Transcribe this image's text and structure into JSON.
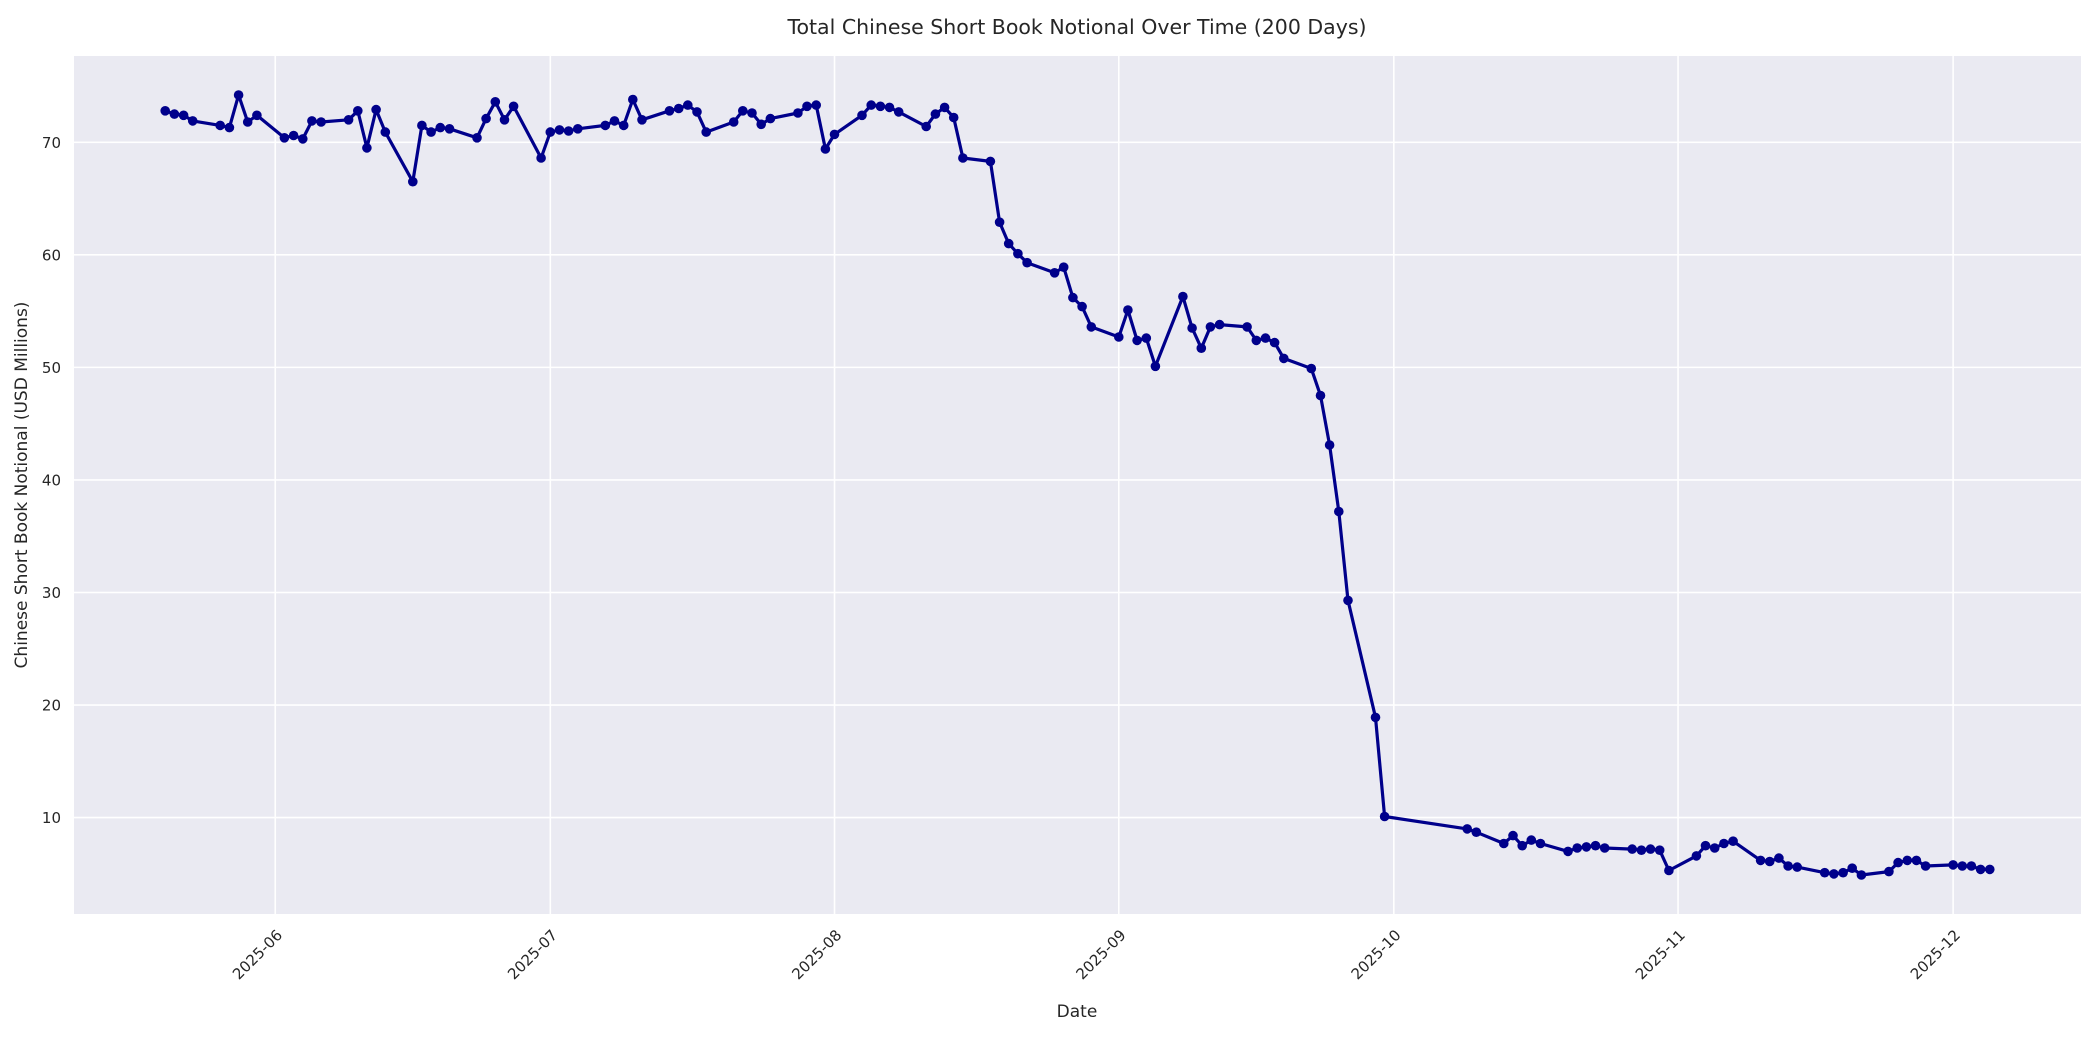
{
  "chart_data": {
    "type": "line",
    "title": "Total Chinese Short Book Notional Over Time (200 Days)",
    "xlabel": "Date",
    "ylabel": "Chinese Short Book Notional (USD Millions)",
    "legend": false,
    "grid": true,
    "style": {
      "line_color": "#00008B",
      "marker": "circle",
      "marker_radius": 4.8,
      "line_width": 3.2,
      "plot_background": "#EAEAF2",
      "grid_color": "#FFFFFF",
      "text_color": "#262626",
      "figure_background": "#FFFFFF"
    },
    "ylim": [
      1.4,
      77.7
    ],
    "xlim": [
      "2025-05-10",
      "2025-12-15"
    ],
    "y_ticks": [
      10,
      20,
      30,
      40,
      50,
      60,
      70
    ],
    "x_ticks": [
      {
        "date": "2025-06-01",
        "label": "2025-06"
      },
      {
        "date": "2025-07-01",
        "label": "2025-07"
      },
      {
        "date": "2025-08-01",
        "label": "2025-08"
      },
      {
        "date": "2025-09-01",
        "label": "2025-09"
      },
      {
        "date": "2025-10-01",
        "label": "2025-10"
      },
      {
        "date": "2025-11-01",
        "label": "2025-11"
      },
      {
        "date": "2025-12-01",
        "label": "2025-12"
      }
    ],
    "x": [
      "2025-05-20",
      "2025-05-21",
      "2025-05-22",
      "2025-05-23",
      "2025-05-26",
      "2025-05-27",
      "2025-05-28",
      "2025-05-29",
      "2025-05-30",
      "2025-06-02",
      "2025-06-03",
      "2025-06-04",
      "2025-06-05",
      "2025-06-06",
      "2025-06-09",
      "2025-06-10",
      "2025-06-11",
      "2025-06-12",
      "2025-06-13",
      "2025-06-16",
      "2025-06-17",
      "2025-06-18",
      "2025-06-19",
      "2025-06-20",
      "2025-06-23",
      "2025-06-24",
      "2025-06-25",
      "2025-06-26",
      "2025-06-27",
      "2025-06-30",
      "2025-07-01",
      "2025-07-02",
      "2025-07-03",
      "2025-07-04",
      "2025-07-07",
      "2025-07-08",
      "2025-07-09",
      "2025-07-10",
      "2025-07-11",
      "2025-07-14",
      "2025-07-15",
      "2025-07-16",
      "2025-07-17",
      "2025-07-18",
      "2025-07-21",
      "2025-07-22",
      "2025-07-23",
      "2025-07-24",
      "2025-07-25",
      "2025-07-28",
      "2025-07-29",
      "2025-07-30",
      "2025-07-31",
      "2025-08-01",
      "2025-08-04",
      "2025-08-05",
      "2025-08-06",
      "2025-08-07",
      "2025-08-08",
      "2025-08-11",
      "2025-08-12",
      "2025-08-13",
      "2025-08-14",
      "2025-08-15",
      "2025-08-18",
      "2025-08-19",
      "2025-08-20",
      "2025-08-21",
      "2025-08-22",
      "2025-08-25",
      "2025-08-26",
      "2025-08-27",
      "2025-08-28",
      "2025-08-29",
      "2025-09-01",
      "2025-09-02",
      "2025-09-03",
      "2025-09-04",
      "2025-09-05",
      "2025-09-08",
      "2025-09-09",
      "2025-09-10",
      "2025-09-11",
      "2025-09-12",
      "2025-09-15",
      "2025-09-16",
      "2025-09-17",
      "2025-09-18",
      "2025-09-19",
      "2025-09-22",
      "2025-09-23",
      "2025-09-24",
      "2025-09-25",
      "2025-09-26",
      "2025-09-29",
      "2025-09-30",
      "2025-10-09",
      "2025-10-10",
      "2025-10-13",
      "2025-10-14",
      "2025-10-15",
      "2025-10-16",
      "2025-10-17",
      "2025-10-20",
      "2025-10-21",
      "2025-10-22",
      "2025-10-23",
      "2025-10-24",
      "2025-10-27",
      "2025-10-28",
      "2025-10-29",
      "2025-10-30",
      "2025-10-31",
      "2025-11-03",
      "2025-11-04",
      "2025-11-05",
      "2025-11-06",
      "2025-11-07",
      "2025-11-10",
      "2025-11-11",
      "2025-11-12",
      "2025-11-13",
      "2025-11-14",
      "2025-11-17",
      "2025-11-18",
      "2025-11-19",
      "2025-11-20",
      "2025-11-21",
      "2025-11-24",
      "2025-11-25",
      "2025-11-26",
      "2025-11-27",
      "2025-11-28",
      "2025-12-01",
      "2025-12-02",
      "2025-12-03",
      "2025-12-04",
      "2025-12-05"
    ],
    "y": [
      72.8,
      72.5,
      72.4,
      71.9,
      71.5,
      71.3,
      74.2,
      71.8,
      72.4,
      70.4,
      70.6,
      70.3,
      71.9,
      71.8,
      72.0,
      72.8,
      69.5,
      72.9,
      70.9,
      66.5,
      71.5,
      70.9,
      71.3,
      71.2,
      70.4,
      72.1,
      73.6,
      72.0,
      73.2,
      68.6,
      70.9,
      71.1,
      71.0,
      71.2,
      71.5,
      71.9,
      71.5,
      73.8,
      72.0,
      72.8,
      73.0,
      73.3,
      72.7,
      70.9,
      71.8,
      72.8,
      72.6,
      71.6,
      72.1,
      72.6,
      73.2,
      73.3,
      69.4,
      70.7,
      72.4,
      73.3,
      73.2,
      73.1,
      72.7,
      71.4,
      72.5,
      73.1,
      72.2,
      68.6,
      68.3,
      62.9,
      61.0,
      60.1,
      59.3,
      58.4,
      58.9,
      56.2,
      55.4,
      53.6,
      52.7,
      55.1,
      52.4,
      52.6,
      50.1,
      56.3,
      53.5,
      51.7,
      53.6,
      53.8,
      53.6,
      52.4,
      52.6,
      52.2,
      50.8,
      49.9,
      47.5,
      43.1,
      37.2,
      29.3,
      18.9,
      10.1,
      9.0,
      8.7,
      7.7,
      8.4,
      7.5,
      8.0,
      7.7,
      7.0,
      7.3,
      7.4,
      7.5,
      7.3,
      7.2,
      7.1,
      7.2,
      7.1,
      5.3,
      6.6,
      7.5,
      7.3,
      7.7,
      7.9,
      6.2,
      6.1,
      6.4,
      5.7,
      5.6,
      5.1,
      5.0,
      5.1,
      5.5,
      4.9,
      5.2,
      6.0,
      6.2,
      6.2,
      5.7,
      5.8,
      5.7,
      5.7,
      5.4,
      5.4
    ]
  }
}
